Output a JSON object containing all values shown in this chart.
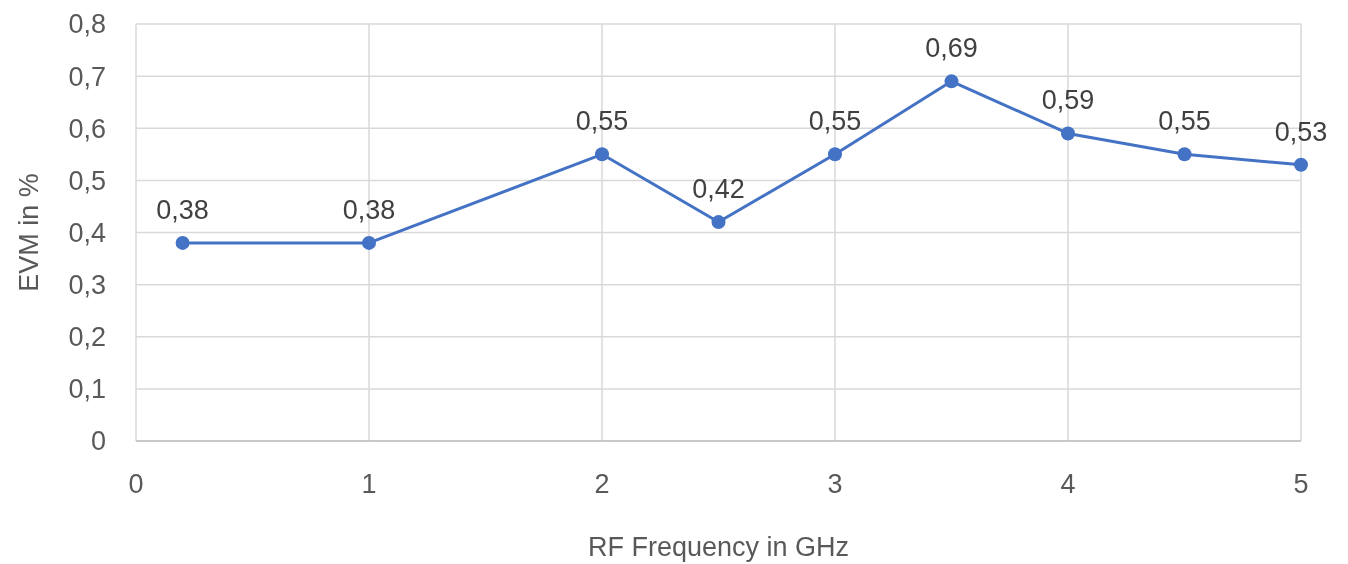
{
  "chart_data": {
    "type": "line",
    "xlabel": "RF Frequency in GHz",
    "ylabel": "EVM in %",
    "x": [
      0.2,
      1,
      2,
      2.5,
      3,
      3.5,
      4,
      4.5,
      5
    ],
    "series": [
      {
        "color": "#4472c4",
        "values": [
          0.38,
          0.38,
          0.55,
          0.42,
          0.55,
          0.69,
          0.59,
          0.55,
          0.53
        ],
        "value_labels": [
          "0,38",
          "0,38",
          "0,55",
          "0,42",
          "0,55",
          "0,69",
          "0,59",
          "0,55",
          "0,53"
        ]
      }
    ],
    "xlim": [
      0,
      5
    ],
    "xticks": [
      0,
      1,
      2,
      3,
      4,
      5
    ],
    "ylim": [
      0,
      0.8
    ],
    "yticks": [
      0,
      {
        "value": 0.1,
        "label": "0,1"
      },
      {
        "value": 0.2,
        "label": "0,2"
      },
      {
        "value": 0.3,
        "label": "0,3"
      },
      {
        "value": 0.4,
        "label": "0,4"
      },
      {
        "value": 0.5,
        "label": "0,5"
      },
      {
        "value": 0.6,
        "label": "0,6"
      },
      {
        "value": 0.7,
        "label": "0,7"
      },
      {
        "value": 0.8,
        "label": "0,8"
      }
    ],
    "grid": true,
    "marker": "circle",
    "line_style": "solid"
  }
}
